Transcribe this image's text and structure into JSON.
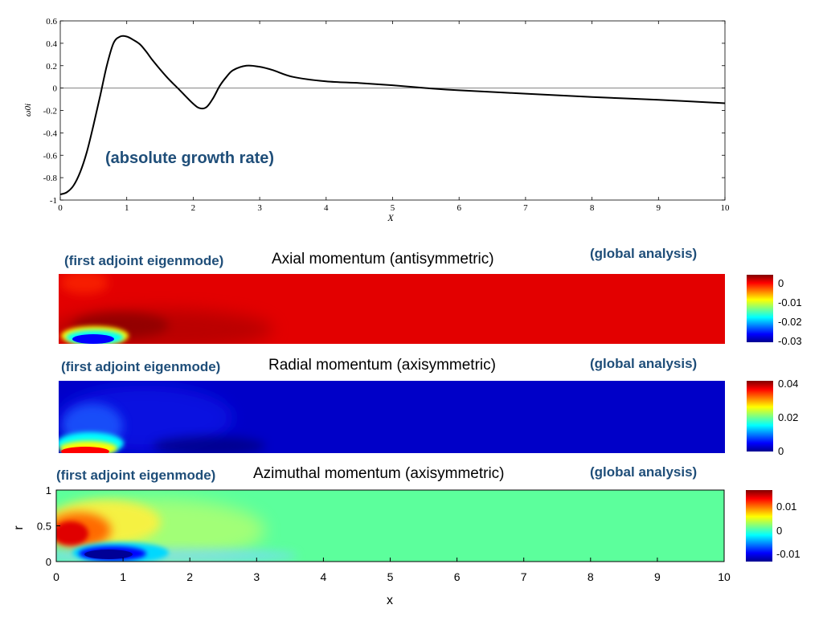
{
  "colors": {
    "note_text": "#1f4e79",
    "curve": "#000000",
    "axes": "#000000",
    "zero_line": "#808080",
    "field_red": "#e30000",
    "field_blue": "#0000c8",
    "field_green": "#5cff9c"
  },
  "chart_data": [
    {
      "type": "line",
      "ylabel": "ω0i",
      "xlabel": "X",
      "xlim": [
        0,
        10
      ],
      "ylim": [
        -1,
        0.6
      ],
      "xticks": [
        "0",
        "1",
        "2",
        "3",
        "4",
        "5",
        "6",
        "7",
        "8",
        "9",
        "10"
      ],
      "yticks": [
        "0.6",
        "0.4",
        "0.2",
        "0",
        "-0.2",
        "-0.4",
        "-0.6",
        "-0.8",
        "-1"
      ],
      "zero_line": true,
      "annotation": "(absolute growth rate)",
      "series": [
        {
          "x": [
            0,
            0.1,
            0.2,
            0.3,
            0.4,
            0.5,
            0.6,
            0.7,
            0.8,
            0.9,
            1.0,
            1.1,
            1.2,
            1.3,
            1.4,
            1.6,
            1.8,
            2.0,
            2.1,
            2.2,
            2.3,
            2.4,
            2.5,
            2.6,
            2.8,
            3.0,
            3.2,
            3.5,
            4.0,
            4.5,
            5.0,
            5.5,
            6.0,
            7.0,
            8.0,
            9.0,
            10.0
          ],
          "y": [
            -0.95,
            -0.93,
            -0.87,
            -0.75,
            -0.57,
            -0.33,
            -0.07,
            0.2,
            0.4,
            0.46,
            0.46,
            0.43,
            0.39,
            0.32,
            0.24,
            0.1,
            -0.02,
            -0.14,
            -0.18,
            -0.17,
            -0.09,
            0.02,
            0.1,
            0.16,
            0.2,
            0.19,
            0.16,
            0.1,
            0.06,
            0.045,
            0.025,
            0.0,
            -0.02,
            -0.05,
            -0.08,
            -0.105,
            -0.135
          ]
        }
      ]
    },
    {
      "type": "heatmap",
      "title": "Axial momentum (antisymmetric)",
      "label_left": "(first adjoint eigenmode)",
      "label_right": "(global analysis)",
      "colorbar_ticks": [
        "0",
        "-0.01",
        "-0.02",
        "-0.03"
      ],
      "colorbar_range": [
        -0.033,
        0.003
      ],
      "background_value": 0.0
    },
    {
      "type": "heatmap",
      "title": "Radial momentum (axisymmetric)",
      "label_left": "(first adjoint eigenmode)",
      "label_right": "(global analysis)",
      "colorbar_ticks": [
        "0.04",
        "0.02",
        "0"
      ],
      "colorbar_range": [
        -0.002,
        0.042
      ],
      "background_value": 0.0
    },
    {
      "type": "heatmap",
      "title": "Azimuthal momentum (axisymmetric)",
      "label_left": "(first adjoint eigenmode)",
      "label_right": "(global analysis)",
      "xlabel": "x",
      "ylabel": "r",
      "xticks": [
        "0",
        "1",
        "2",
        "3",
        "4",
        "5",
        "6",
        "7",
        "8",
        "9",
        "10"
      ],
      "yticks": [
        "1",
        "0.5",
        "0"
      ],
      "colorbar_ticks": [
        "0.01",
        "0",
        "-0.01"
      ],
      "colorbar_range": [
        -0.015,
        0.015
      ],
      "background_value": 0.0
    }
  ]
}
